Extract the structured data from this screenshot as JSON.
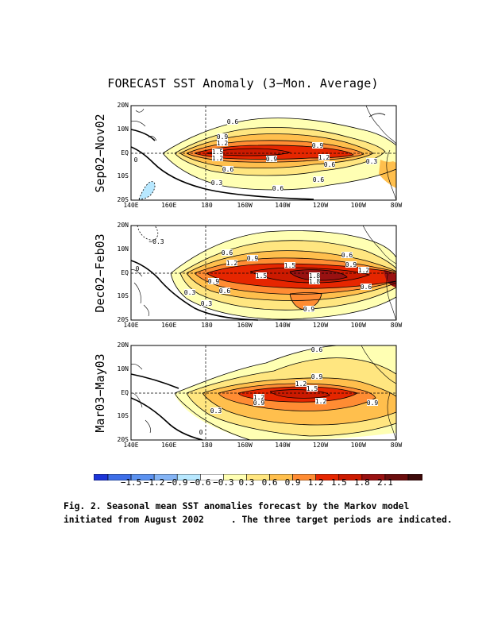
{
  "title": "FORECAST SST Anomaly (3−Mon. Average)",
  "panels": [
    {
      "label": "Sep02−Nov02",
      "contour_labels": [
        "0.6",
        "0.9",
        "1.2",
        "1.5",
        "1.2",
        "0.9",
        "0.9",
        "1.2",
        "0.6",
        "0.3",
        "0.6",
        "0.6",
        "0.6",
        "0.3",
        "0"
      ]
    },
    {
      "label": "Dec02−Feb03",
      "contour_labels": [
        "−0.3",
        "0.3",
        "0.6",
        "0.9",
        "1.2",
        "1.5",
        "1.5",
        "1.8",
        "1.8",
        "0.6",
        "0.9",
        "1.2",
        "0.9",
        "0.6",
        "0.3",
        "0.9",
        "0.6",
        "0"
      ]
    },
    {
      "label": "Mar03−May03",
      "contour_labels": [
        "0.6",
        "0.9",
        "1.2",
        "1.5",
        "1.2",
        "0.9",
        "1.2",
        "0.9",
        "0.3",
        "0"
      ]
    }
  ],
  "lat_ticks": [
    "20N",
    "10N",
    "EQ",
    "10S",
    "20S"
  ],
  "lon_ticks": [
    "140E",
    "160E",
    "180",
    "160W",
    "140W",
    "120W",
    "100W",
    "80W"
  ],
  "colorbar": {
    "colors": [
      "#1c35d8",
      "#3d6ee8",
      "#5c92f0",
      "#84b4f5",
      "#b8e8ff",
      "#ffffff",
      "#ffffb3",
      "#ffe680",
      "#ffbf4d",
      "#ff8c33",
      "#e62600",
      "#cc1a00",
      "#991111",
      "#6b0d0d",
      "#3d0a0a"
    ],
    "labels": [
      "−1.5",
      "−1.2",
      "−0.9",
      "−0.6",
      "−0.3",
      "0.3",
      "0.6",
      "0.9",
      "1.2",
      "1.5",
      "1.8",
      "2.1"
    ]
  },
  "caption": {
    "line1": "Fig. 2. Seasonal mean SST anomalies forecast by the Markov model",
    "line2": "initiated from August 2002     . The three target periods are indicated."
  }
}
